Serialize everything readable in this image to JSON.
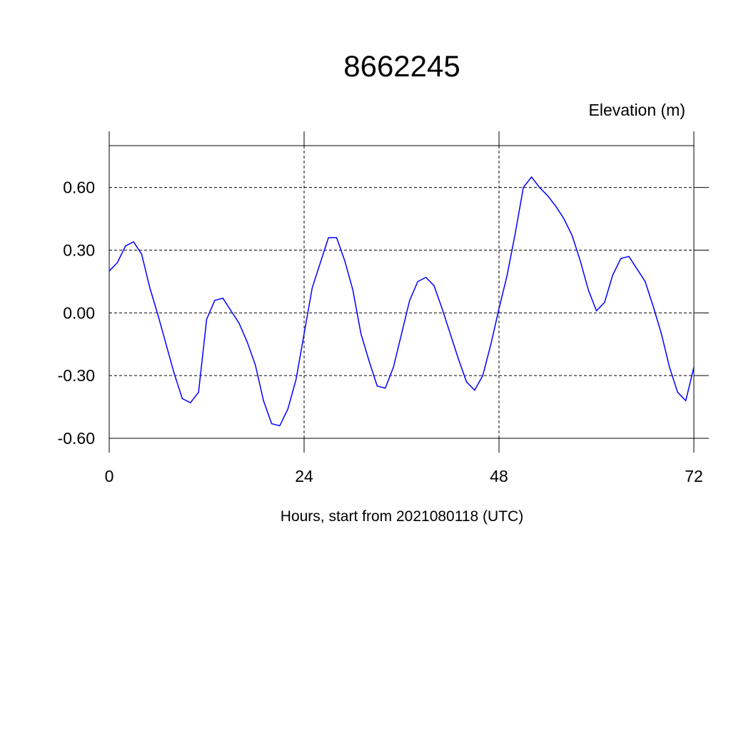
{
  "chart_data": {
    "type": "line",
    "title": "8662245",
    "subtitle": "Elevation (m)",
    "x_label": "Hours, start from 2021080118 (UTC)",
    "x": [
      0,
      1,
      2,
      3,
      4,
      5,
      6,
      7,
      8,
      9,
      10,
      11,
      12,
      13,
      14,
      15,
      16,
      17,
      18,
      19,
      20,
      21,
      22,
      23,
      24,
      25,
      26,
      27,
      28,
      29,
      30,
      31,
      32,
      33,
      34,
      35,
      36,
      37,
      38,
      39,
      40,
      41,
      42,
      43,
      44,
      45,
      46,
      47,
      48,
      49,
      50,
      51,
      52,
      53,
      54,
      55,
      56,
      57,
      58,
      59,
      60,
      61,
      62,
      63,
      64,
      65,
      66,
      67,
      68,
      69,
      70,
      71,
      72
    ],
    "series": [
      {
        "name": "Elevation",
        "color": "#0000ff",
        "values": [
          0.2,
          0.24,
          0.32,
          0.34,
          0.28,
          0.12,
          -0.01,
          -0.15,
          -0.29,
          -0.41,
          -0.43,
          -0.38,
          -0.03,
          0.06,
          0.07,
          0.01,
          -0.05,
          -0.14,
          -0.25,
          -0.42,
          -0.53,
          -0.54,
          -0.46,
          -0.32,
          -0.1,
          0.12,
          0.24,
          0.36,
          0.36,
          0.25,
          0.11,
          -0.1,
          -0.23,
          -0.35,
          -0.36,
          -0.26,
          -0.1,
          0.06,
          0.15,
          0.17,
          0.13,
          0.02,
          -0.1,
          -0.22,
          -0.33,
          -0.37,
          -0.3,
          -0.15,
          0.02,
          0.18,
          0.38,
          0.6,
          0.65,
          0.6,
          0.56,
          0.51,
          0.45,
          0.37,
          0.25,
          0.11,
          0.01,
          0.05,
          0.18,
          0.26,
          0.27,
          0.21,
          0.15,
          0.03,
          -0.1,
          -0.26,
          -0.38,
          -0.42,
          -0.26
        ]
      }
    ],
    "xlim": [
      0,
      72
    ],
    "xticks": [
      0,
      24,
      48,
      72
    ],
    "ylim": [
      -0.6,
      0.8
    ],
    "yticks": [
      {
        "value": -0.6,
        "label": "-0.60"
      },
      {
        "value": -0.3,
        "label": "-0.30"
      },
      {
        "value": 0,
        "label": "0.00"
      },
      {
        "value": 0.3,
        "label": "0.30"
      },
      {
        "value": 0.6,
        "label": "0.60"
      }
    ],
    "grid": true
  }
}
